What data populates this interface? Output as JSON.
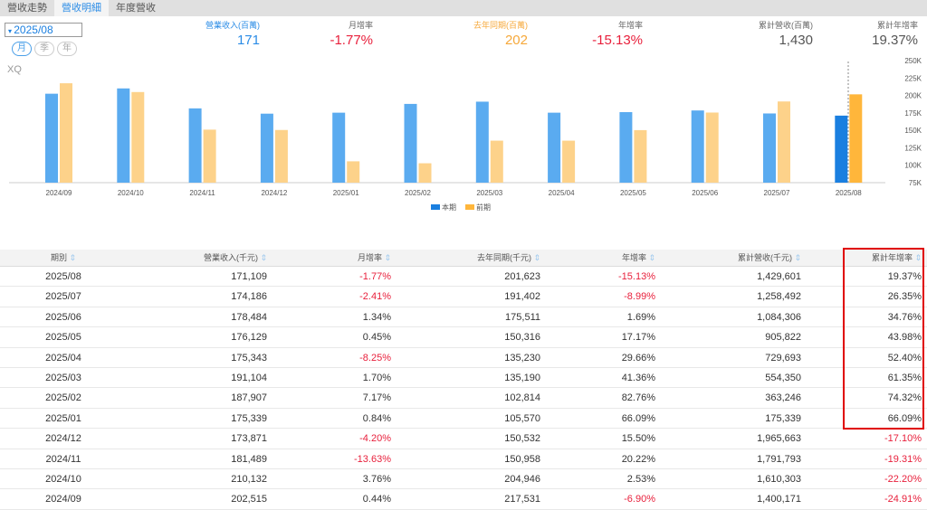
{
  "tabs": [
    "營收走勢",
    "營收明細",
    "年度營收"
  ],
  "period_select": "2025/08",
  "period_types": [
    "月",
    "季",
    "年"
  ],
  "summary": [
    {
      "label": "營業收入(百萬)",
      "value": "171",
      "color": "#2b8ce6"
    },
    {
      "label": "月增率",
      "value": "-1.77%",
      "color": "#e8203c"
    },
    {
      "label": "去年同期(百萬)",
      "value": "202",
      "color": "#f6a83a"
    },
    {
      "label": "年增率",
      "value": "-15.13%",
      "color": "#e8203c"
    },
    {
      "label": "累計營收(百萬)",
      "value": "1,430",
      "color": "#555555"
    },
    {
      "label": "累計年增率",
      "value": "19.37%",
      "color": "#555555"
    }
  ],
  "chart_data": {
    "type": "bar",
    "watermark": "XQ",
    "categories": [
      "2024/09",
      "2024/10",
      "2024/11",
      "2024/12",
      "2025/01",
      "2025/02",
      "2025/03",
      "2025/04",
      "2025/05",
      "2025/06",
      "2025/07",
      "2025/08"
    ],
    "series": [
      {
        "name": "本期",
        "color": "#5aabf0",
        "values": [
          202.5,
          210.1,
          181.5,
          173.9,
          175.3,
          187.9,
          191.1,
          175.3,
          176.1,
          178.5,
          174.2,
          171.1
        ]
      },
      {
        "name": "前期",
        "color": "#fdd28a",
        "values": [
          217.5,
          204.9,
          151.0,
          150.5,
          105.6,
          102.8,
          135.2,
          135.2,
          150.3,
          175.5,
          191.4,
          201.6
        ]
      }
    ],
    "ylim": [
      75,
      250
    ],
    "yticks": [
      "75K",
      "100K",
      "125K",
      "150K",
      "175K",
      "200K",
      "225K",
      "250K"
    ]
  },
  "table": {
    "headers": [
      "期別",
      "營業收入(千元)",
      "月增率",
      "去年同期(千元)",
      "年增率",
      "累計營收(千元)",
      "累計年增率"
    ],
    "rows": [
      [
        "2025/08",
        "171,109",
        "-1.77%",
        "201,623",
        "-15.13%",
        "1,429,601",
        "19.37%"
      ],
      [
        "2025/07",
        "174,186",
        "-2.41%",
        "191,402",
        "-8.99%",
        "1,258,492",
        "26.35%"
      ],
      [
        "2025/06",
        "178,484",
        "1.34%",
        "175,511",
        "1.69%",
        "1,084,306",
        "34.76%"
      ],
      [
        "2025/05",
        "176,129",
        "0.45%",
        "150,316",
        "17.17%",
        "905,822",
        "43.98%"
      ],
      [
        "2025/04",
        "175,343",
        "-8.25%",
        "135,230",
        "29.66%",
        "729,693",
        "52.40%"
      ],
      [
        "2025/03",
        "191,104",
        "1.70%",
        "135,190",
        "41.36%",
        "554,350",
        "61.35%"
      ],
      [
        "2025/02",
        "187,907",
        "7.17%",
        "102,814",
        "82.76%",
        "363,246",
        "74.32%"
      ],
      [
        "2025/01",
        "175,339",
        "0.84%",
        "105,570",
        "66.09%",
        "175,339",
        "66.09%"
      ],
      [
        "2024/12",
        "173,871",
        "-4.20%",
        "150,532",
        "15.50%",
        "1,965,663",
        "-17.10%"
      ],
      [
        "2024/11",
        "181,489",
        "-13.63%",
        "150,958",
        "20.22%",
        "1,791,793",
        "-19.31%"
      ],
      [
        "2024/10",
        "210,132",
        "3.76%",
        "204,946",
        "2.53%",
        "1,610,303",
        "-22.20%"
      ],
      [
        "2024/09",
        "202,515",
        "0.44%",
        "217,531",
        "-6.90%",
        "1,400,171",
        "-24.91%"
      ]
    ]
  }
}
